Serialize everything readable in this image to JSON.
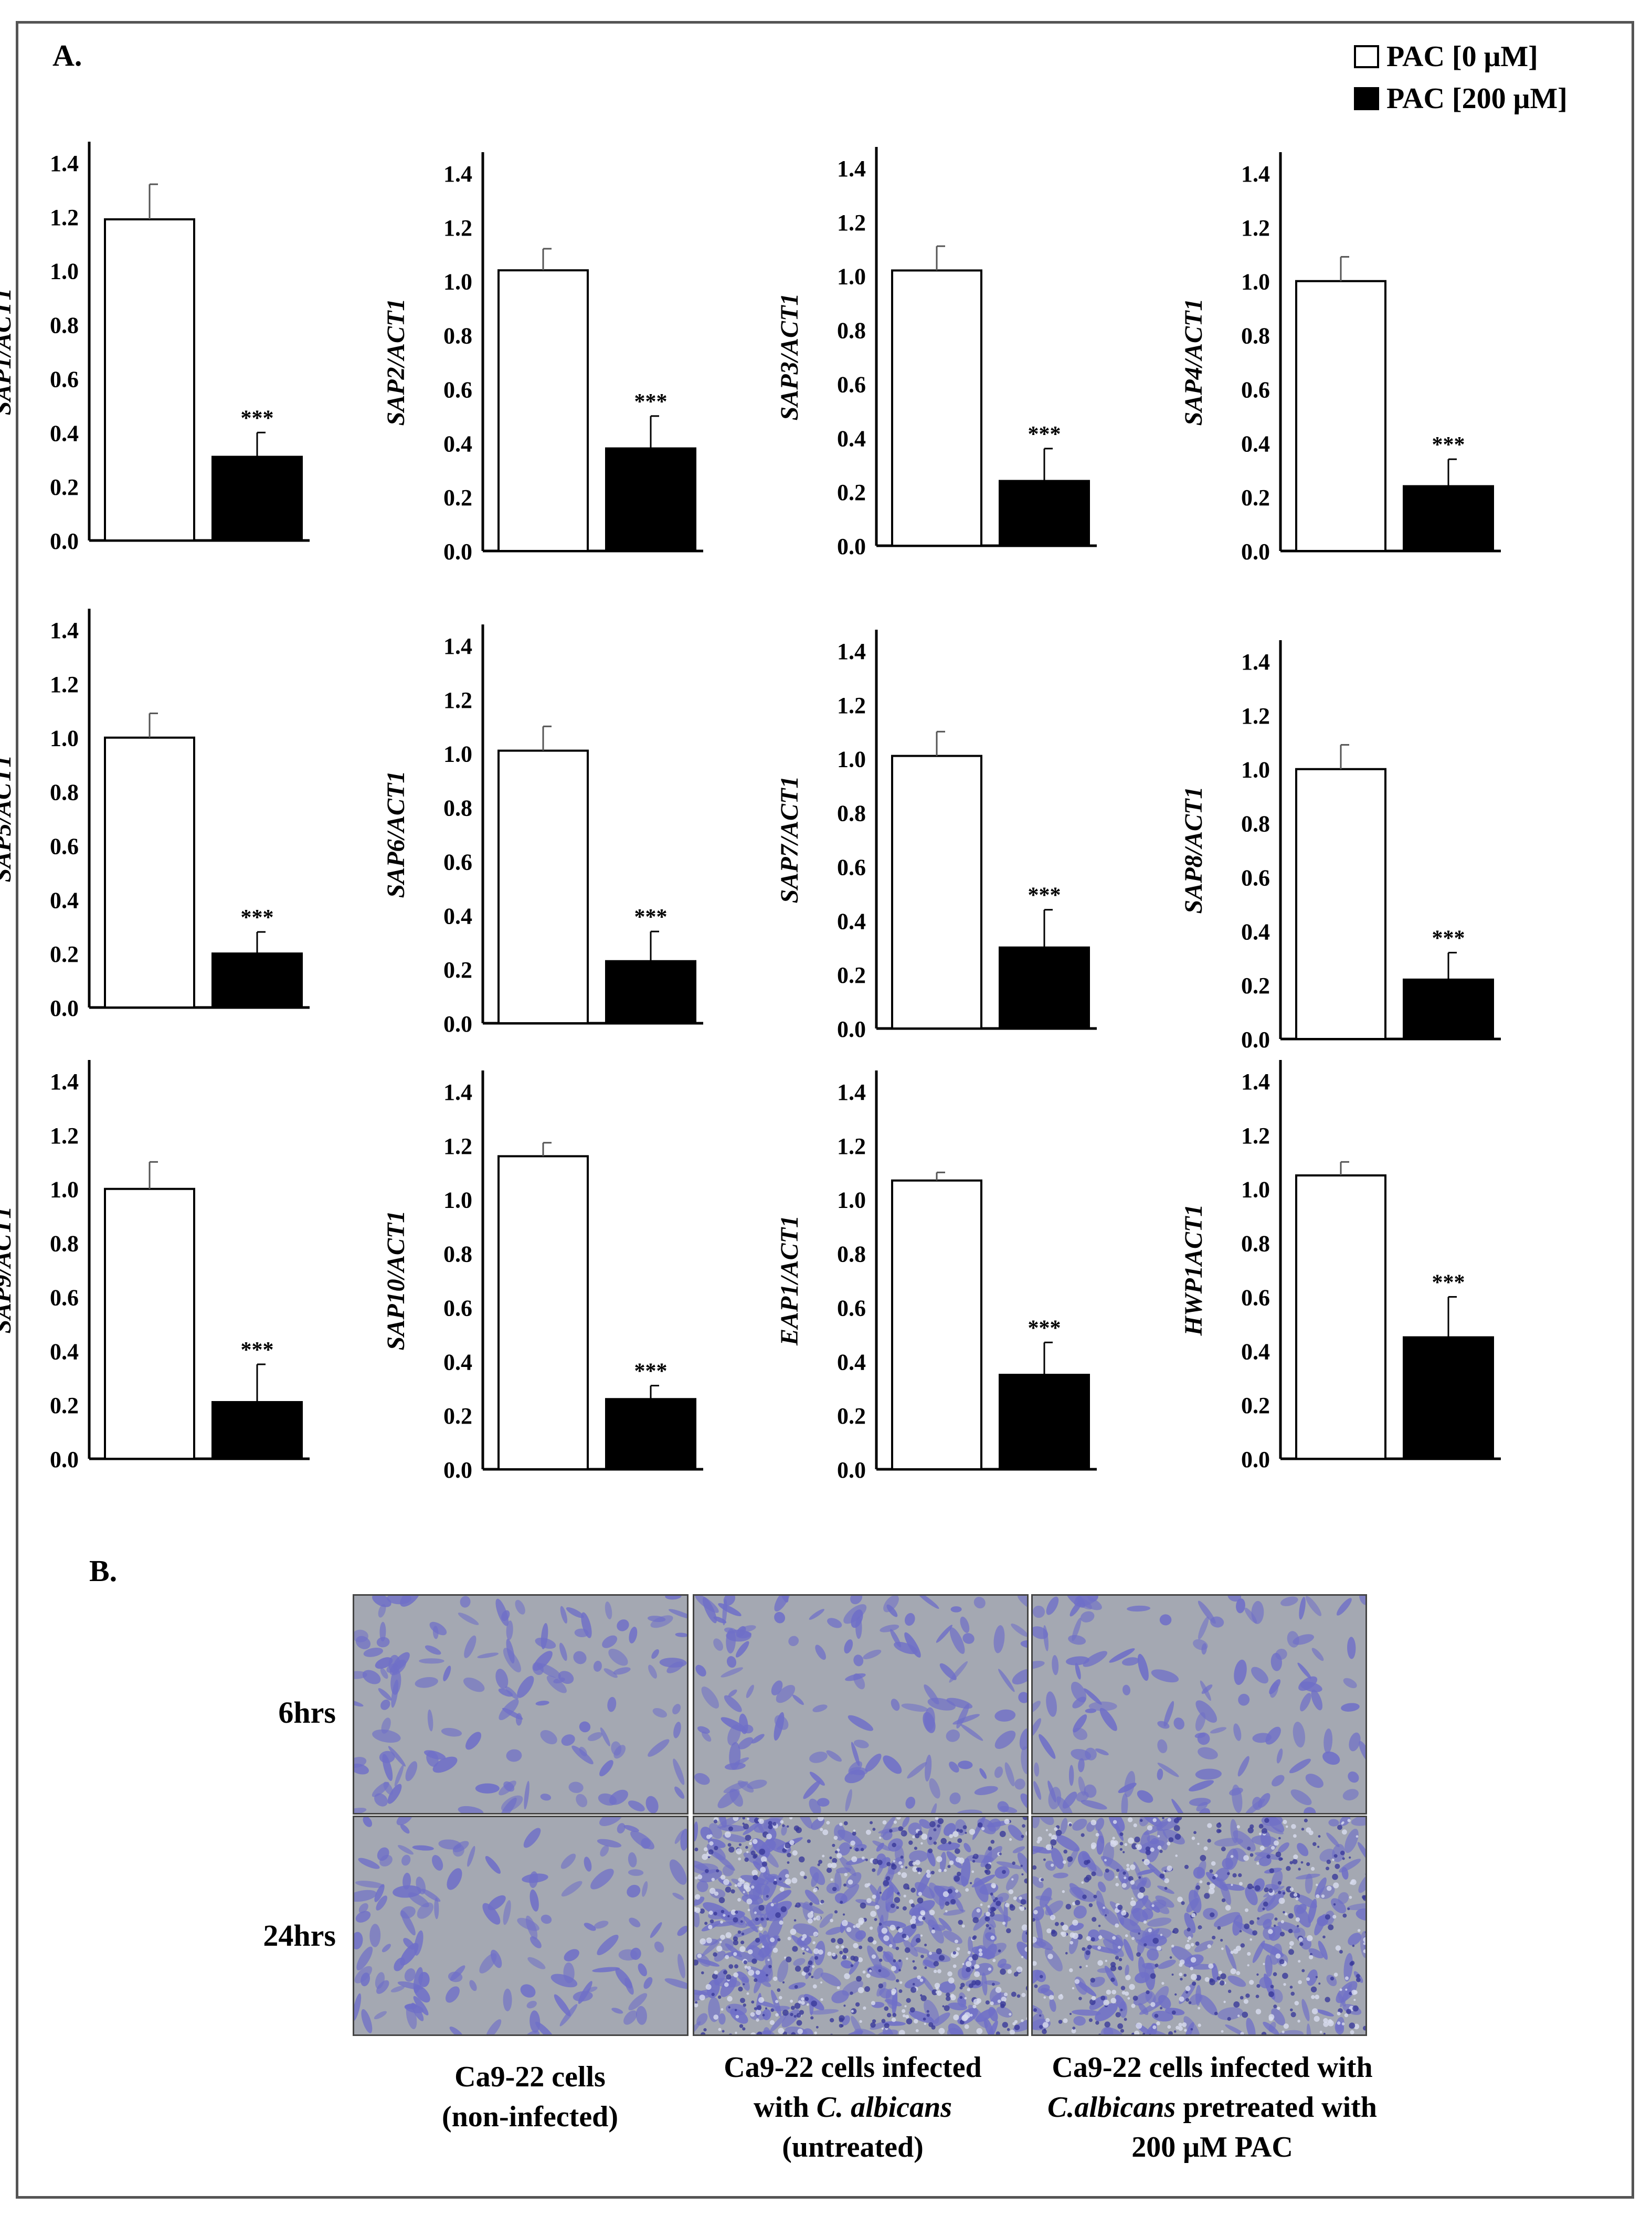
{
  "panel_a_label": "A.",
  "panel_b_label": "B.",
  "legend": [
    {
      "label": "PAC [0 μM]",
      "color": "#ffffff"
    },
    {
      "label": "PAC [200 μM]",
      "color": "#000000"
    }
  ],
  "chart_data": [
    {
      "type": "bar",
      "ylabel": "SAP1/ACT1",
      "categories": [
        "PAC [0 μM]",
        "PAC [200 μM]"
      ],
      "values": [
        1.19,
        0.31
      ],
      "errors": [
        0.13,
        0.09
      ],
      "significance": [
        "",
        "***"
      ],
      "ylim": [
        0,
        1.4
      ],
      "yticks": [
        "0.0",
        "0.2",
        "0.4",
        "0.6",
        "0.8",
        "1.0",
        "1.2",
        "1.4"
      ]
    },
    {
      "type": "bar",
      "ylabel": "SAP2/ACT1",
      "categories": [
        "PAC [0 μM]",
        "PAC [200 μM]"
      ],
      "values": [
        1.04,
        0.38
      ],
      "errors": [
        0.08,
        0.12
      ],
      "significance": [
        "",
        "***"
      ],
      "ylim": [
        0,
        1.4
      ],
      "yticks": [
        "0.0",
        "0.2",
        "0.4",
        "0.6",
        "0.8",
        "1.0",
        "1.2",
        "1.4"
      ]
    },
    {
      "type": "bar",
      "ylabel": "SAP3/ACT1",
      "categories": [
        "PAC [0 μM]",
        "PAC [200 μM]"
      ],
      "values": [
        1.02,
        0.24
      ],
      "errors": [
        0.09,
        0.12
      ],
      "significance": [
        "",
        "***"
      ],
      "ylim": [
        0,
        1.4
      ],
      "yticks": [
        "0.0",
        "0.2",
        "0.4",
        "0.6",
        "0.8",
        "1.0",
        "1.2",
        "1.4"
      ]
    },
    {
      "type": "bar",
      "ylabel": "SAP4/ACT1",
      "categories": [
        "PAC [0 μM]",
        "PAC [200 μM]"
      ],
      "values": [
        1.0,
        0.24
      ],
      "errors": [
        0.09,
        0.1
      ],
      "significance": [
        "",
        "***"
      ],
      "ylim": [
        0,
        1.4
      ],
      "yticks": [
        "0.0",
        "0.2",
        "0.4",
        "0.6",
        "0.8",
        "1.0",
        "1.2",
        "1.4"
      ]
    },
    {
      "type": "bar",
      "ylabel": "SAP5/ACT1",
      "categories": [
        "PAC [0 μM]",
        "PAC [200 μM]"
      ],
      "values": [
        1.0,
        0.2
      ],
      "errors": [
        0.09,
        0.08
      ],
      "significance": [
        "",
        "***"
      ],
      "ylim": [
        0,
        1.4
      ],
      "yticks": [
        "0.0",
        "0.2",
        "0.4",
        "0.6",
        "0.8",
        "1.0",
        "1.2",
        "1.4"
      ]
    },
    {
      "type": "bar",
      "ylabel": "SAP6/ACT1",
      "categories": [
        "PAC [0 μM]",
        "PAC [200 μM]"
      ],
      "values": [
        1.01,
        0.23
      ],
      "errors": [
        0.09,
        0.11
      ],
      "significance": [
        "",
        "***"
      ],
      "ylim": [
        0,
        1.4
      ],
      "yticks": [
        "0.0",
        "0.2",
        "0.4",
        "0.6",
        "0.8",
        "1.0",
        "1.2",
        "1.4"
      ]
    },
    {
      "type": "bar",
      "ylabel": "SAP7/ACT1",
      "categories": [
        "PAC [0 μM]",
        "PAC [200 μM]"
      ],
      "values": [
        1.01,
        0.3
      ],
      "errors": [
        0.09,
        0.14
      ],
      "significance": [
        "",
        "***"
      ],
      "ylim": [
        0,
        1.4
      ],
      "yticks": [
        "0.0",
        "0.2",
        "0.4",
        "0.6",
        "0.8",
        "1.0",
        "1.2",
        "1.4"
      ]
    },
    {
      "type": "bar",
      "ylabel": "SAP8/ACT1",
      "categories": [
        "PAC [0 μM]",
        "PAC [200 μM]"
      ],
      "values": [
        1.0,
        0.22
      ],
      "errors": [
        0.09,
        0.1
      ],
      "significance": [
        "",
        "***"
      ],
      "ylim": [
        0,
        1.4
      ],
      "yticks": [
        "0.0",
        "0.2",
        "0.4",
        "0.6",
        "0.8",
        "1.0",
        "1.2",
        "1.4"
      ]
    },
    {
      "type": "bar",
      "ylabel": "SAP9/ACT1",
      "categories": [
        "PAC [0 μM]",
        "PAC [200 μM]"
      ],
      "values": [
        1.0,
        0.21
      ],
      "errors": [
        0.1,
        0.14
      ],
      "significance": [
        "",
        "***"
      ],
      "ylim": [
        0,
        1.4
      ],
      "yticks": [
        "0.0",
        "0.2",
        "0.4",
        "0.6",
        "0.8",
        "1.0",
        "1.2",
        "1.4"
      ]
    },
    {
      "type": "bar",
      "ylabel": "SAP10/ACT1",
      "categories": [
        "PAC [0 μM]",
        "PAC [200 μM]"
      ],
      "values": [
        1.16,
        0.26
      ],
      "errors": [
        0.05,
        0.05
      ],
      "significance": [
        "",
        "***"
      ],
      "ylim": [
        0,
        1.4
      ],
      "yticks": [
        "0.0",
        "0.2",
        "0.4",
        "0.6",
        "0.8",
        "1.0",
        "1.2",
        "1.4"
      ]
    },
    {
      "type": "bar",
      "ylabel": "EAP1/ACT1",
      "categories": [
        "PAC [0 μM]",
        "PAC [200 μM]"
      ],
      "values": [
        1.07,
        0.35
      ],
      "errors": [
        0.03,
        0.12
      ],
      "significance": [
        "",
        "***"
      ],
      "ylim": [
        0,
        1.4
      ],
      "yticks": [
        "0.0",
        "0.2",
        "0.4",
        "0.6",
        "0.8",
        "1.0",
        "1.2",
        "1.4"
      ]
    },
    {
      "type": "bar",
      "ylabel": "HWP1ACT1",
      "categories": [
        "PAC [0 μM]",
        "PAC [200 μM]"
      ],
      "values": [
        1.05,
        0.45
      ],
      "errors": [
        0.05,
        0.15
      ],
      "significance": [
        "",
        "***"
      ],
      "ylim": [
        0,
        1.4
      ],
      "yticks": [
        "0.0",
        "0.2",
        "0.4",
        "0.6",
        "0.8",
        "1.0",
        "1.2",
        "1.4"
      ]
    }
  ],
  "micrographs": {
    "rows": [
      "6hrs",
      "24hrs"
    ],
    "columns": [
      {
        "line1": "Ca9-22 cells",
        "line2": "(non-infected)",
        "line3": ""
      },
      {
        "line1": "Ca9-22 cells infected",
        "line2_pre": "with ",
        "line2_em": "C. albicans",
        "line2_post": "",
        "line3": "(untreated)"
      },
      {
        "line1": "Ca9-22 cells infected with",
        "line2_pre": "",
        "line2_em": "C.albicans",
        "line2_post": " pretreated with",
        "line3": "200 μM PAC"
      }
    ],
    "stain_color": "#6f6fc8",
    "background_color": "#a4a8b2"
  }
}
